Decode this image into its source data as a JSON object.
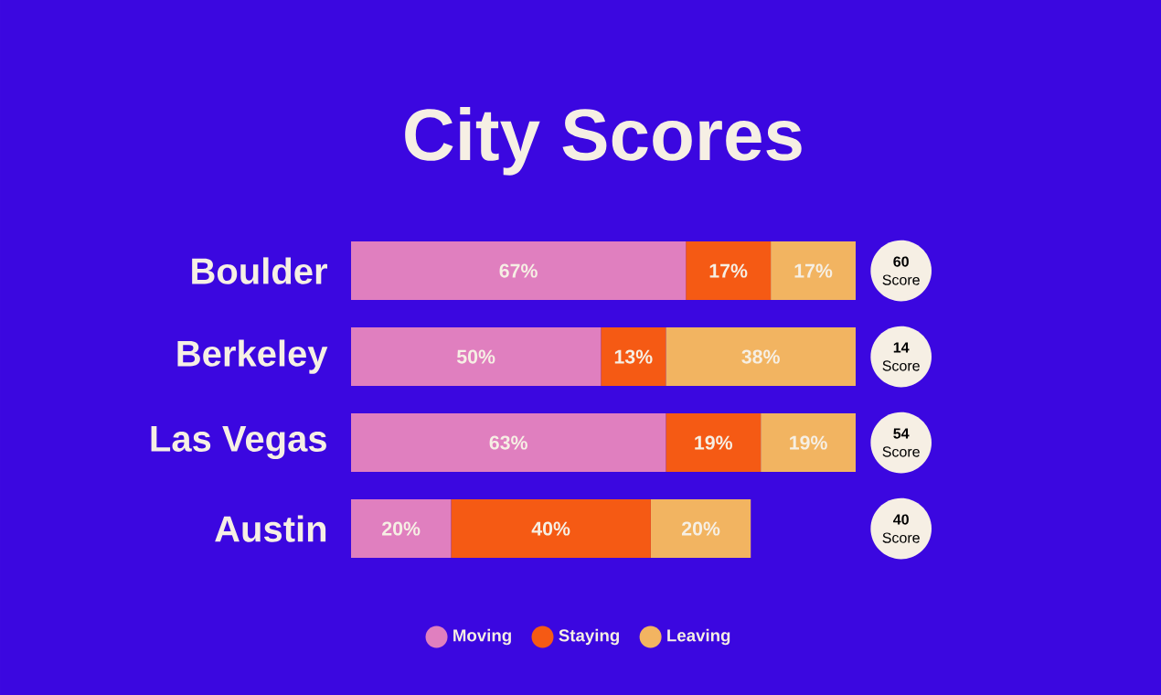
{
  "chart_data": {
    "type": "bar",
    "orientation": "horizontal",
    "stacked": true,
    "title": "City Scores",
    "categories": [
      "Boulder",
      "Berkeley",
      "Las Vegas",
      "Austin"
    ],
    "series": [
      {
        "name": "Moving",
        "color": "#e07fbf",
        "values": [
          67,
          50,
          63,
          20
        ],
        "value_labels": [
          "67%",
          "50%",
          "63%",
          "20%"
        ]
      },
      {
        "name": "Staying",
        "color": "#f55a14",
        "values": [
          17,
          13,
          19,
          40
        ],
        "value_labels": [
          "17%",
          "13%",
          "19%",
          "40%"
        ]
      },
      {
        "name": "Leaving",
        "color": "#f2b461",
        "values": [
          17,
          38,
          19,
          20
        ],
        "value_labels": [
          "17%",
          "38%",
          "19%",
          "20%"
        ]
      }
    ],
    "annotations": [
      "**60** Score",
      "**14** Score",
      "**54** Score",
      "**40** Score"
    ],
    "legend": "bottom"
  }
}
